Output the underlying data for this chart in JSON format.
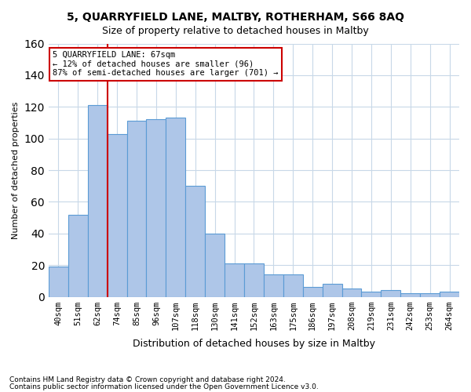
{
  "title1": "5, QUARRYFIELD LANE, MALTBY, ROTHERHAM, S66 8AQ",
  "title2": "Size of property relative to detached houses in Maltby",
  "xlabel": "Distribution of detached houses by size in Maltby",
  "ylabel": "Number of detached properties",
  "categories": [
    "40sqm",
    "51sqm",
    "62sqm",
    "74sqm",
    "85sqm",
    "96sqm",
    "107sqm",
    "118sqm",
    "130sqm",
    "141sqm",
    "152sqm",
    "163sqm",
    "175sqm",
    "186sqm",
    "197sqm",
    "208sqm",
    "219sqm",
    "231sqm",
    "242sqm",
    "253sqm",
    "264sqm"
  ],
  "values": [
    19,
    52,
    121,
    103,
    111,
    112,
    113,
    70,
    40,
    21,
    21,
    14,
    14,
    6,
    8,
    5,
    3,
    4,
    2,
    2,
    3
  ],
  "bar_color": "#AEC6E8",
  "bar_edge_color": "#5B9BD5",
  "vline_x": 2.5,
  "vline_color": "#CC0000",
  "annotation_title": "5 QUARRYFIELD LANE: 67sqm",
  "annotation_line1": "← 12% of detached houses are smaller (96)",
  "annotation_line2": "87% of semi-detached houses are larger (701) →",
  "annotation_box_color": "#FFFFFF",
  "annotation_box_edge_color": "#CC0000",
  "ylim": [
    0,
    160
  ],
  "yticks": [
    0,
    20,
    40,
    60,
    80,
    100,
    120,
    140,
    160
  ],
  "footnote1": "Contains HM Land Registry data © Crown copyright and database right 2024.",
  "footnote2": "Contains public sector information licensed under the Open Government Licence v3.0.",
  "bg_color": "#FFFFFF",
  "grid_color": "#C8D8E8"
}
